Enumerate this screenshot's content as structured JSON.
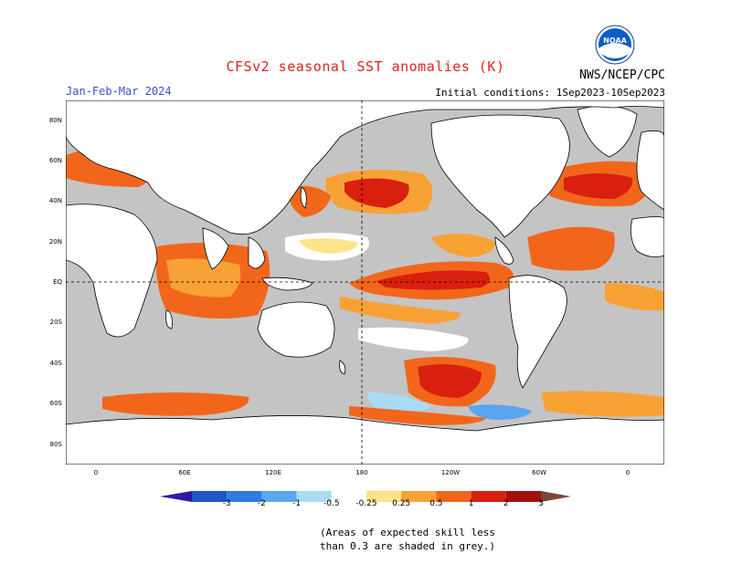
{
  "title": "CFSv2 seasonal SST anomalies (K)",
  "agency": "NWS/NCEP/CPC",
  "logo_text": "NOAA",
  "period": "Jan-Feb-Mar 2024",
  "initial_conditions": "Initial conditions: 1Sep2023-10Sep2023",
  "lat_labels": [
    "80N",
    "60N",
    "40N",
    "20N",
    "EQ",
    "20S",
    "40S",
    "60S",
    "80S"
  ],
  "lon_labels": [
    "0",
    "60E",
    "120E",
    "180",
    "120W",
    "60W",
    "0"
  ],
  "colorbar": {
    "ticks": [
      "-3",
      "-2",
      "-1",
      "-0.5",
      "-0.25",
      "0.25",
      "0.5",
      "1",
      "2",
      "3"
    ],
    "colors": [
      "#2b1ba8",
      "#1f55c9",
      "#2f7be0",
      "#5aa6f0",
      "#a8dcf5",
      "#ffffff",
      "#fde38a",
      "#f8a235",
      "#f2661b",
      "#d91f0e",
      "#a3100b",
      "#7a4838"
    ]
  },
  "note_lines": [
    "(Areas of expected skill less",
    "than 0.3 are shaded in grey.)"
  ],
  "colors": {
    "land": "#ffffff",
    "ocean_low_skill": "#c4c4c4",
    "title": "#e0241b",
    "period": "#3a4fc6"
  }
}
